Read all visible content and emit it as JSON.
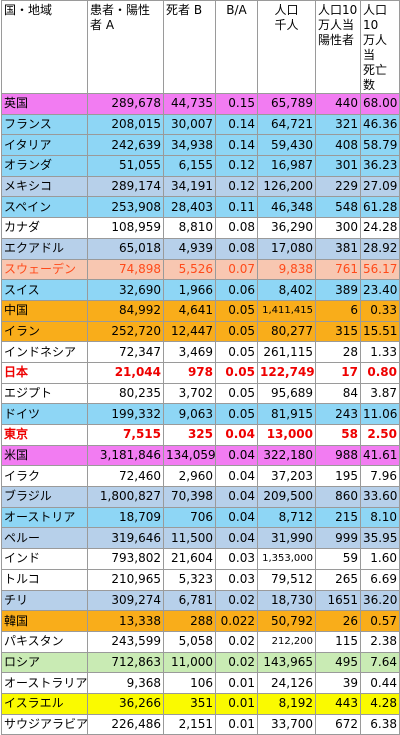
{
  "header": {
    "country": "国・地域",
    "patients_l1": "患者・陽性",
    "patients_l2": "者 A",
    "deaths": "死者 B",
    "ratio": "B/A",
    "pop_l1": "人口",
    "pop_l2": "千人",
    "per_pos_l1": "人口10",
    "per_pos_l2": "万人当",
    "per_pos_l3": "陽性者",
    "per_death_l1": "人口10",
    "per_death_l2": "万人当",
    "per_death_l3": "死亡数"
  },
  "rows": [
    {
      "name": "英国",
      "a": "289,678",
      "b": "44,735",
      "r": "0.15",
      "pop": "65,789",
      "pp": "440",
      "pd": "68.00",
      "bg": "magenta"
    },
    {
      "name": "フランス",
      "a": "208,015",
      "b": "30,007",
      "r": "0.14",
      "pop": "64,721",
      "pp": "321",
      "pd": "46.36",
      "bg": "cyan"
    },
    {
      "name": "イタリア",
      "a": "242,639",
      "b": "34,938",
      "r": "0.14",
      "pop": "59,430",
      "pp": "408",
      "pd": "58.79",
      "bg": "cyan"
    },
    {
      "name": "オランダ",
      "a": "51,055",
      "b": "6,155",
      "r": "0.12",
      "pop": "16,987",
      "pp": "301",
      "pd": "36.23",
      "bg": "cyan"
    },
    {
      "name": "メキシコ",
      "a": "289,174",
      "b": "34,191",
      "r": "0.12",
      "pop": "126,200",
      "pp": "229",
      "pd": "27.09",
      "bg": "blue"
    },
    {
      "name": "スペイン",
      "a": "253,908",
      "b": "28,403",
      "r": "0.11",
      "pop": "46,348",
      "pp": "548",
      "pd": "61.28",
      "bg": "cyan"
    },
    {
      "name": "カナダ",
      "a": "108,959",
      "b": "8,810",
      "r": "0.08",
      "pop": "36,290",
      "pp": "300",
      "pd": "24.28",
      "bg": "white"
    },
    {
      "name": "エクアドル",
      "a": "65,018",
      "b": "4,939",
      "r": "0.08",
      "pop": "17,080",
      "pp": "381",
      "pd": "28.92",
      "bg": "blue"
    },
    {
      "name": "スウェーデン",
      "a": "74,898",
      "b": "5,526",
      "r": "0.07",
      "pop": "9,838",
      "pp": "761",
      "pd": "56.17",
      "bg": "salmon"
    },
    {
      "name": "スイス",
      "a": "32,690",
      "b": "1,966",
      "r": "0.06",
      "pop": "8,402",
      "pp": "389",
      "pd": "23.40",
      "bg": "cyan"
    },
    {
      "name": "中国",
      "a": "84,992",
      "b": "4,641",
      "r": "0.05",
      "pop": "1,411,415",
      "pp": "6",
      "pd": "0.33",
      "bg": "orange",
      "smallpop": true
    },
    {
      "name": "イラン",
      "a": "252,720",
      "b": "12,447",
      "r": "0.05",
      "pop": "80,277",
      "pp": "315",
      "pd": "15.51",
      "bg": "orange"
    },
    {
      "name": "インドネシア",
      "a": "72,347",
      "b": "3,469",
      "r": "0.05",
      "pop": "261,115",
      "pp": "28",
      "pd": "1.33",
      "bg": "white"
    },
    {
      "name": "日本",
      "a": "21,044",
      "b": "978",
      "r": "0.05",
      "pop": "122,749",
      "pp": "17",
      "pd": "0.80",
      "bg": "white",
      "red": true
    },
    {
      "name": "エジプト",
      "a": "80,235",
      "b": "3,702",
      "r": "0.05",
      "pop": "95,689",
      "pp": "84",
      "pd": "3.87",
      "bg": "white"
    },
    {
      "name": "ドイツ",
      "a": "199,332",
      "b": "9,063",
      "r": "0.05",
      "pop": "81,915",
      "pp": "243",
      "pd": "11.06",
      "bg": "cyan"
    },
    {
      "name": "東京",
      "a": "7,515",
      "b": "325",
      "r": "0.04",
      "pop": "13,000",
      "pp": "58",
      "pd": "2.50",
      "bg": "white",
      "red": true
    },
    {
      "name": "米国",
      "a": "3,181,846",
      "b": "134,059",
      "r": "0.04",
      "pop": "322,180",
      "pp": "988",
      "pd": "41.61",
      "bg": "magenta"
    },
    {
      "name": "イラク",
      "a": "72,460",
      "b": "2,960",
      "r": "0.04",
      "pop": "37,203",
      "pp": "195",
      "pd": "7.96",
      "bg": "white"
    },
    {
      "name": "ブラジル",
      "a": "1,800,827",
      "b": "70,398",
      "r": "0.04",
      "pop": "209,500",
      "pp": "860",
      "pd": "33.60",
      "bg": "blue"
    },
    {
      "name": "オーストリア",
      "a": "18,709",
      "b": "706",
      "r": "0.04",
      "pop": "8,712",
      "pp": "215",
      "pd": "8.10",
      "bg": "cyan"
    },
    {
      "name": "ペルー",
      "a": "319,646",
      "b": "11,500",
      "r": "0.04",
      "pop": "31,990",
      "pp": "999",
      "pd": "35.95",
      "bg": "blue"
    },
    {
      "name": "インド",
      "a": "793,802",
      "b": "21,604",
      "r": "0.03",
      "pop": "1,353,000",
      "pp": "59",
      "pd": "1.60",
      "bg": "white",
      "smallpop": true
    },
    {
      "name": "トルコ",
      "a": "210,965",
      "b": "5,323",
      "r": "0.03",
      "pop": "79,512",
      "pp": "265",
      "pd": "6.69",
      "bg": "white"
    },
    {
      "name": "チリ",
      "a": "309,274",
      "b": "6,781",
      "r": "0.02",
      "pop": "18,730",
      "pp": "1651",
      "pd": "36.20",
      "bg": "blue"
    },
    {
      "name": "韓国",
      "a": "13,338",
      "b": "288",
      "r": "0.022",
      "pop": "50,792",
      "pp": "26",
      "pd": "0.57",
      "bg": "orange"
    },
    {
      "name": "パキスタン",
      "a": "243,599",
      "b": "5,058",
      "r": "0.02",
      "pop": "212,200",
      "pp": "115",
      "pd": "2.38",
      "bg": "white",
      "smallpop": true
    },
    {
      "name": "ロシア",
      "a": "712,863",
      "b": "11,000",
      "r": "0.02",
      "pop": "143,965",
      "pp": "495",
      "pd": "7.64",
      "bg": "green"
    },
    {
      "name": "オーストラリア",
      "a": "9,368",
      "b": "106",
      "r": "0.01",
      "pop": "24,126",
      "pp": "39",
      "pd": "0.44",
      "bg": "white"
    },
    {
      "name": "イスラエル",
      "a": "36,266",
      "b": "351",
      "r": "0.01",
      "pop": "8,192",
      "pp": "443",
      "pd": "4.28",
      "bg": "yellow"
    },
    {
      "name": "サウジアラビア",
      "a": "226,486",
      "b": "2,151",
      "r": "0.01",
      "pop": "33,700",
      "pp": "672",
      "pd": "6.38",
      "bg": "white"
    }
  ]
}
